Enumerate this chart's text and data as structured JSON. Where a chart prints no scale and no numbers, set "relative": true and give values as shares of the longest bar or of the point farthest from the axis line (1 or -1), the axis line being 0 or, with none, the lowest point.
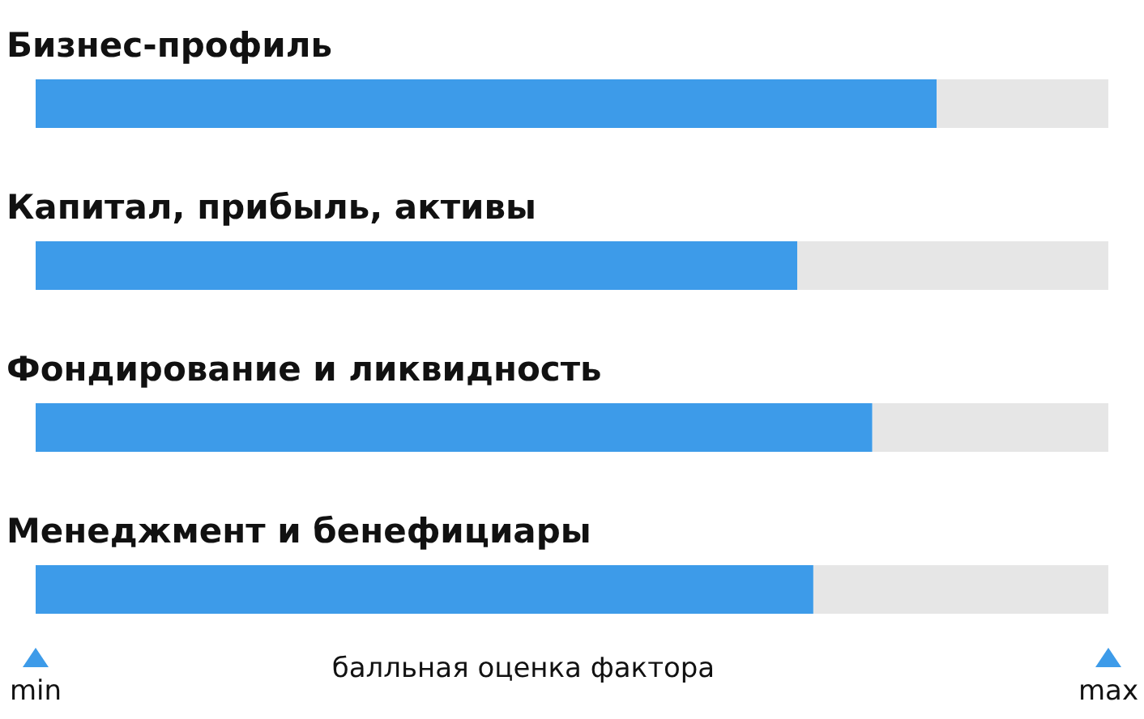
{
  "chart_data": {
    "type": "bar",
    "orientation": "horizontal",
    "stacked": true,
    "relative": true,
    "categories": [
      "Бизнес-профиль",
      "Капитал, прибыль, активы",
      "Фондирование и ликвидность",
      "Менеджмент и бенефициары"
    ],
    "series": [
      {
        "color": "#3d9be9",
        "values": [
          0.84,
          0.71,
          0.78,
          0.725
        ]
      },
      {
        "color": "#e6e6e6",
        "values": [
          0.16,
          0.29,
          0.22,
          0.275
        ]
      }
    ],
    "xlabel": "балльная оценка фактора",
    "annotations": [
      "min",
      "max"
    ]
  }
}
